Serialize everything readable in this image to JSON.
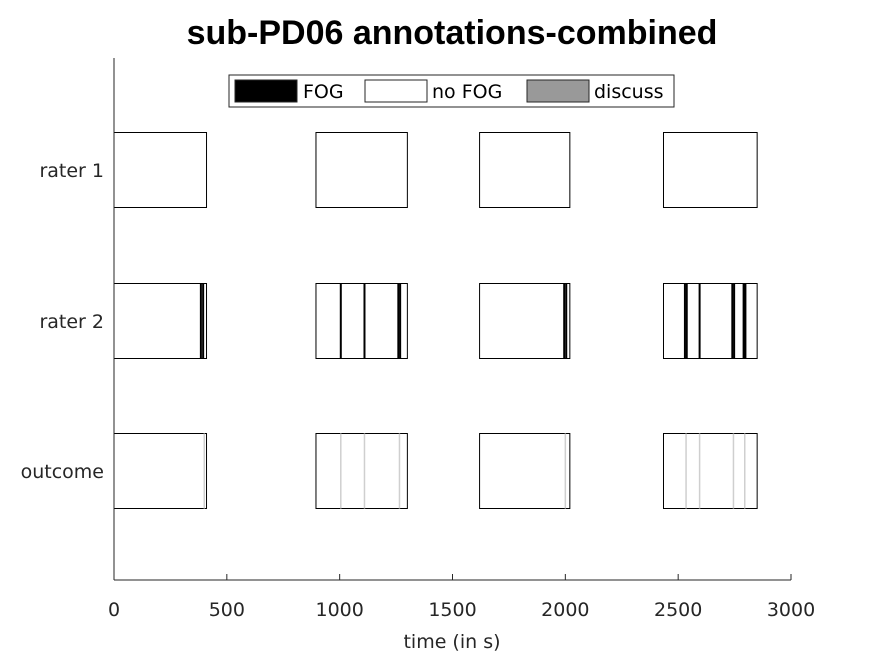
{
  "chart_data": {
    "type": "bar",
    "title": "sub-PD06 annotations-combined",
    "xlabel": "time (in s)",
    "ylabel": "",
    "xlim": [
      0,
      3000
    ],
    "xticks": [
      0,
      500,
      1000,
      1500,
      2000,
      2500,
      3000
    ],
    "rows": [
      "rater 1",
      "rater 2",
      "outcome"
    ],
    "legend": {
      "position": "top",
      "entries": [
        {
          "label": "FOG",
          "color": "#000000"
        },
        {
          "label": "no FOG",
          "color": "#ffffff"
        },
        {
          "label": "discuss",
          "color": "#999999"
        }
      ]
    },
    "segments": [
      {
        "start": 0,
        "end": 410
      },
      {
        "start": 895,
        "end": 1300
      },
      {
        "start": 1620,
        "end": 2020
      },
      {
        "start": 2435,
        "end": 2850
      }
    ],
    "events": {
      "rater 2": [
        {
          "t": 385,
          "label": "FOG"
        },
        {
          "t": 395,
          "label": "FOG"
        },
        {
          "t": 1005,
          "label": "FOG"
        },
        {
          "t": 1110,
          "label": "FOG"
        },
        {
          "t": 1260,
          "label": "FOG"
        },
        {
          "t": 1268,
          "label": "FOG"
        },
        {
          "t": 1995,
          "label": "FOG"
        },
        {
          "t": 2004,
          "label": "FOG"
        },
        {
          "t": 2530,
          "label": "FOG"
        },
        {
          "t": 2538,
          "label": "FOG"
        },
        {
          "t": 2595,
          "label": "FOG"
        },
        {
          "t": 2740,
          "label": "FOG"
        },
        {
          "t": 2748,
          "label": "FOG"
        },
        {
          "t": 2790,
          "label": "FOG"
        },
        {
          "t": 2798,
          "label": "FOG"
        }
      ],
      "outcome": [
        {
          "t": 400,
          "label": "discuss"
        },
        {
          "t": 1005,
          "label": "discuss"
        },
        {
          "t": 1110,
          "label": "discuss"
        },
        {
          "t": 1265,
          "label": "discuss"
        },
        {
          "t": 2000,
          "label": "discuss"
        },
        {
          "t": 2535,
          "label": "discuss"
        },
        {
          "t": 2595,
          "label": "discuss"
        },
        {
          "t": 2745,
          "label": "discuss"
        },
        {
          "t": 2795,
          "label": "discuss"
        }
      ]
    }
  }
}
